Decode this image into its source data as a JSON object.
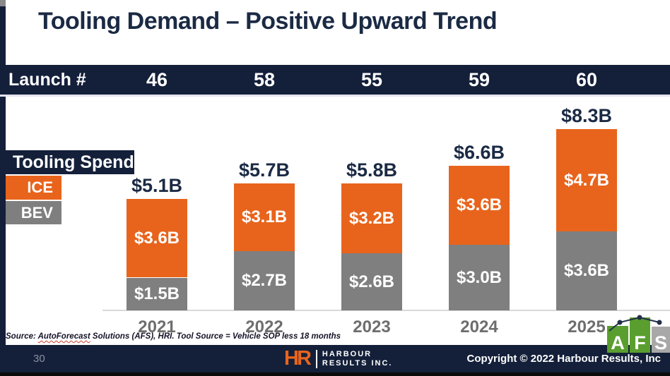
{
  "slide": {
    "title": "Tooling Demand – Positive Upward Trend",
    "launch_row": {
      "label": "Launch #"
    },
    "legend": {
      "title": "Tooling Spend",
      "ice_label": "ICE",
      "bev_label": "BEV",
      "ice_color": "#E8641C",
      "bev_color": "#7F7F7F"
    },
    "source_note": {
      "prefix": "Source: ",
      "underlined_word": "AutoForecast",
      "rest": " Solutions (AFS), HRI. Tool Source = Vehicle SOP less 18 months"
    },
    "footer": {
      "page_number": "30",
      "hr_logo": {
        "monogram": "HR",
        "line1": "HARBOUR",
        "line2": "RESULTS INC."
      },
      "copyright": "Copyright © 2022 Harbour Results, Inc"
    },
    "afs_logo": {
      "letters": [
        "A",
        "F",
        "S"
      ]
    },
    "colors": {
      "navy": "#14203A",
      "title_navy": "#1B2A44",
      "orange": "#E8641C",
      "gray": "#7F7F7F"
    }
  },
  "chart_data": {
    "type": "bar",
    "stacked": true,
    "title": "Tooling Spend",
    "unit": "$B (USD billions)",
    "categories": [
      "2021",
      "2022",
      "2023",
      "2024",
      "2025"
    ],
    "series": [
      {
        "name": "BEV",
        "color": "#7F7F7F",
        "values": [
          1.5,
          2.7,
          2.6,
          3.0,
          3.6
        ]
      },
      {
        "name": "ICE",
        "color": "#E8641C",
        "values": [
          3.6,
          3.1,
          3.2,
          3.6,
          4.7
        ]
      }
    ],
    "totals": [
      5.1,
      5.7,
      5.8,
      6.6,
      8.3
    ],
    "total_labels": [
      "$5.1B",
      "$5.7B",
      "$5.8B",
      "$6.6B",
      "$8.3B"
    ],
    "segment_labels": {
      "ICE": [
        "$3.6B",
        "$3.1B",
        "$3.2B",
        "$3.6B",
        "$4.7B"
      ],
      "BEV": [
        "$1.5B",
        "$2.7B",
        "$2.6B",
        "$3.0B",
        "$3.6B"
      ]
    },
    "launch_counts": [
      "46",
      "58",
      "55",
      "59",
      "60"
    ],
    "ylim": [
      0,
      9
    ],
    "grid": false,
    "legend_position": "left"
  }
}
